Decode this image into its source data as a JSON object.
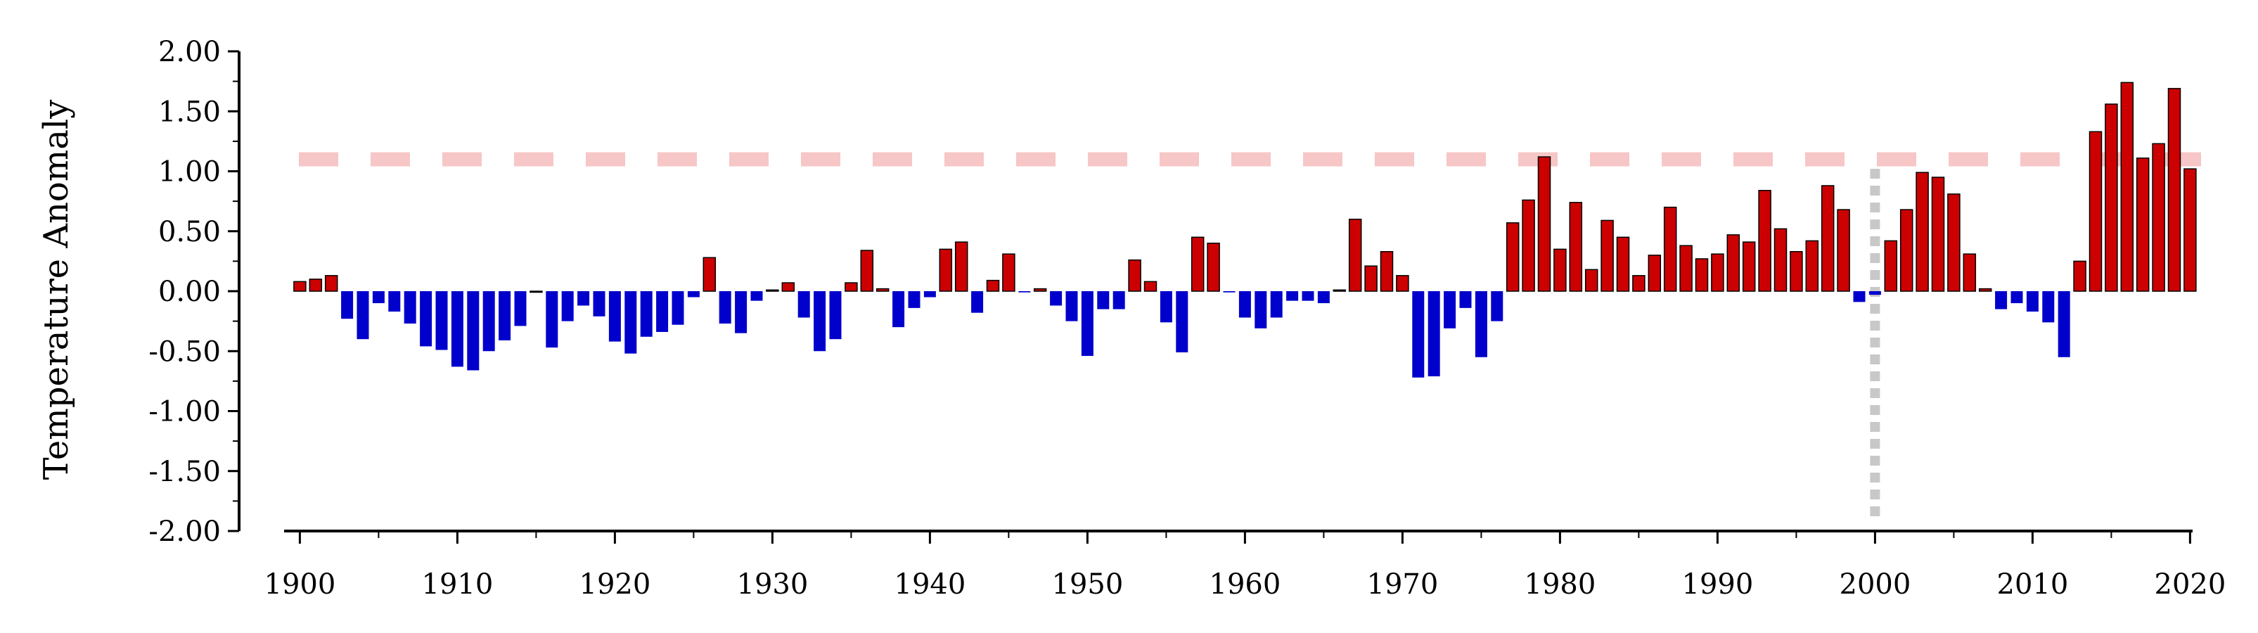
{
  "chart_data": {
    "type": "bar",
    "ylabel": "Temperature Anomaly",
    "xlabel": "",
    "title": "",
    "ylim": [
      -2.0,
      2.0
    ],
    "xlim": [
      1899.5,
      2020.5
    ],
    "y_ticks": [
      "2.00",
      "1.50",
      "1.00",
      "0.50",
      "0.00",
      "-0.50",
      "-1.00",
      "-1.50",
      "-2.00"
    ],
    "x_ticks": [
      "1900",
      "1910",
      "1920",
      "1930",
      "1940",
      "1950",
      "1960",
      "1970",
      "1980",
      "1990",
      "2000",
      "2010",
      "2020"
    ],
    "reference_line_y": 1.1,
    "reference_line_x": 2000,
    "colors": {
      "positive": "#cc0000",
      "negative": "#0000cc",
      "reference_horizontal": "#f7c6c6",
      "reference_vertical": "#c8c8c8",
      "axis": "#000000"
    },
    "grid": false,
    "x": [
      1900,
      1901,
      1902,
      1903,
      1904,
      1905,
      1906,
      1907,
      1908,
      1909,
      1910,
      1911,
      1912,
      1913,
      1914,
      1915,
      1916,
      1917,
      1918,
      1919,
      1920,
      1921,
      1922,
      1923,
      1924,
      1925,
      1926,
      1927,
      1928,
      1929,
      1930,
      1931,
      1932,
      1933,
      1934,
      1935,
      1936,
      1937,
      1938,
      1939,
      1940,
      1941,
      1942,
      1943,
      1944,
      1945,
      1946,
      1947,
      1948,
      1949,
      1950,
      1951,
      1952,
      1953,
      1954,
      1955,
      1956,
      1957,
      1958,
      1959,
      1960,
      1961,
      1962,
      1963,
      1964,
      1965,
      1966,
      1967,
      1968,
      1969,
      1970,
      1971,
      1972,
      1973,
      1974,
      1975,
      1976,
      1977,
      1978,
      1979,
      1980,
      1981,
      1982,
      1983,
      1984,
      1985,
      1986,
      1987,
      1988,
      1989,
      1990,
      1991,
      1992,
      1993,
      1994,
      1995,
      1996,
      1997,
      1998,
      1999,
      2000,
      2001,
      2002,
      2003,
      2004,
      2005,
      2006,
      2007,
      2008,
      2009,
      2010,
      2011,
      2012,
      2013,
      2014,
      2015,
      2016,
      2017,
      2018,
      2019,
      2020
    ],
    "values": [
      0.08,
      0.1,
      0.13,
      -0.23,
      -0.4,
      -0.1,
      -0.17,
      -0.27,
      -0.46,
      -0.49,
      -0.63,
      -0.66,
      -0.5,
      -0.41,
      -0.29,
      0.0,
      -0.47,
      -0.25,
      -0.12,
      -0.21,
      -0.42,
      -0.52,
      -0.38,
      -0.34,
      -0.28,
      -0.05,
      0.28,
      -0.27,
      -0.35,
      -0.08,
      0.01,
      0.07,
      -0.22,
      -0.5,
      -0.4,
      0.07,
      0.34,
      0.02,
      -0.3,
      -0.14,
      -0.05,
      0.35,
      0.41,
      -0.18,
      0.09,
      0.31,
      -0.01,
      0.02,
      -0.12,
      -0.25,
      -0.54,
      -0.15,
      -0.15,
      0.26,
      0.08,
      -0.26,
      -0.51,
      0.45,
      0.4,
      -0.01,
      -0.22,
      -0.31,
      -0.22,
      -0.08,
      -0.08,
      -0.1,
      0.01,
      0.6,
      0.21,
      0.33,
      0.13,
      -0.72,
      -0.71,
      -0.31,
      -0.14,
      -0.55,
      -0.25,
      0.57,
      0.76,
      1.12,
      0.35,
      0.74,
      0.18,
      0.59,
      0.45,
      0.13,
      0.3,
      0.7,
      0.38,
      0.27,
      0.31,
      0.47,
      0.41,
      0.84,
      0.52,
      0.33,
      0.42,
      0.88,
      0.68,
      -0.09,
      -0.03,
      0.42,
      0.68,
      0.99,
      0.95,
      0.81,
      0.31,
      0.02,
      -0.15,
      -0.1,
      -0.17,
      -0.26,
      -0.55,
      0.25,
      1.33,
      1.56,
      1.74,
      1.11,
      1.23,
      1.69,
      1.02
    ]
  }
}
